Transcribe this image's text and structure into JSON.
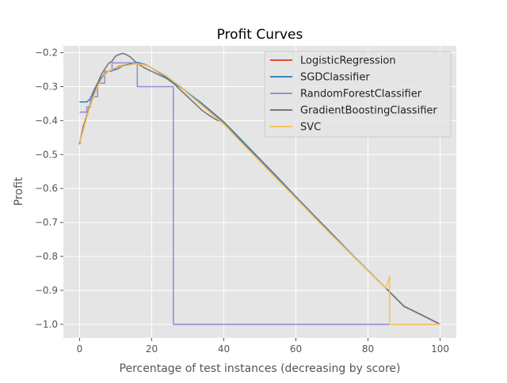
{
  "chart_data": {
    "type": "line",
    "title": "Profit Curves",
    "xlabel": "Percentage of test instances (decreasing by score)",
    "ylabel": "Profit",
    "xlim": [
      -4.5,
      104.5
    ],
    "ylim": [
      -1.04,
      -0.18
    ],
    "xticks": [
      0,
      20,
      40,
      60,
      80,
      100
    ],
    "xtick_labels": [
      "0",
      "20",
      "40",
      "60",
      "80",
      "100"
    ],
    "yticks": [
      -1.0,
      -0.9,
      -0.8,
      -0.7,
      -0.6,
      -0.5,
      -0.4,
      -0.3,
      -0.2
    ],
    "ytick_labels": [
      "−1.0",
      "−0.9",
      "−0.8",
      "−0.7",
      "−0.6",
      "−0.5",
      "−0.4",
      "−0.3",
      "−0.2"
    ],
    "grid": true,
    "legend_position": "top-right",
    "colors": {
      "background": "#E5E5E5",
      "grid": "#FFFFFF",
      "text": "#555555"
    },
    "series": [
      {
        "name": "LogisticRegression",
        "color": "#E24A33",
        "x": [
          0,
          1,
          2,
          3,
          4,
          5,
          6,
          7,
          8,
          9,
          10,
          11,
          12,
          13,
          14,
          15,
          16,
          17,
          18,
          20,
          22,
          24,
          26,
          28,
          30,
          32,
          34,
          36,
          38,
          40,
          44,
          50,
          55,
          60,
          65,
          70,
          75,
          80,
          85,
          90,
          95,
          100
        ],
        "y": [
          -0.465,
          -0.42,
          -0.385,
          -0.355,
          -0.325,
          -0.3,
          -0.28,
          -0.265,
          -0.255,
          -0.25,
          -0.245,
          -0.24,
          -0.238,
          -0.236,
          -0.234,
          -0.232,
          -0.231,
          -0.232,
          -0.234,
          -0.245,
          -0.258,
          -0.27,
          -0.285,
          -0.3,
          -0.318,
          -0.336,
          -0.354,
          -0.372,
          -0.39,
          -0.41,
          -0.452,
          -0.517,
          -0.572,
          -0.627,
          -0.682,
          -0.736,
          -0.79,
          -0.842,
          -0.894,
          -0.947,
          -0.973,
          -1.0
        ]
      },
      {
        "name": "SGDClassifier",
        "color": "#348ABD",
        "x": [
          0,
          2,
          2,
          3,
          4,
          5,
          6,
          7,
          8,
          9,
          10,
          11,
          12,
          13,
          14,
          15,
          16,
          17,
          18,
          20,
          22,
          24,
          26,
          28,
          30,
          32,
          34,
          36,
          38,
          40,
          44,
          50,
          55,
          60,
          65,
          70,
          75,
          80,
          85,
          90,
          95,
          100
        ],
        "y": [
          -0.345,
          -0.345,
          -0.345,
          -0.335,
          -0.31,
          -0.29,
          -0.275,
          -0.262,
          -0.255,
          -0.252,
          -0.25,
          -0.245,
          -0.24,
          -0.236,
          -0.233,
          -0.23,
          -0.229,
          -0.231,
          -0.235,
          -0.245,
          -0.258,
          -0.272,
          -0.288,
          -0.302,
          -0.318,
          -0.334,
          -0.35,
          -0.368,
          -0.386,
          -0.404,
          -0.447,
          -0.513,
          -0.568,
          -0.624,
          -0.679,
          -0.733,
          -0.788,
          -0.841,
          -0.894,
          -0.947,
          -0.973,
          -1.0
        ]
      },
      {
        "name": "RandomForestClassifier",
        "color": "#988ED5",
        "x": [
          0,
          2,
          2,
          3,
          3,
          5,
          5,
          7,
          7,
          9,
          9,
          16,
          16,
          26,
          26,
          86,
          86,
          100
        ],
        "y": [
          -0.375,
          -0.375,
          -0.36,
          -0.36,
          -0.33,
          -0.33,
          -0.29,
          -0.29,
          -0.255,
          -0.255,
          -0.23,
          -0.23,
          -0.3,
          -0.3,
          -1.0,
          -1.0,
          -1.0,
          -1.0
        ]
      },
      {
        "name": "GradientBoostingClassifier",
        "color": "#777777",
        "x": [
          0,
          1,
          2,
          3,
          4,
          5,
          6,
          7,
          8,
          9,
          10,
          11,
          12,
          13,
          14,
          15,
          16,
          17,
          18,
          20,
          22,
          24,
          26,
          28,
          30,
          32,
          34,
          36,
          38,
          40,
          44,
          50,
          55,
          60,
          65,
          70,
          75,
          80,
          85,
          90,
          95,
          100
        ],
        "y": [
          -0.47,
          -0.42,
          -0.385,
          -0.35,
          -0.318,
          -0.29,
          -0.265,
          -0.248,
          -0.232,
          -0.225,
          -0.21,
          -0.205,
          -0.202,
          -0.206,
          -0.212,
          -0.222,
          -0.232,
          -0.238,
          -0.245,
          -0.255,
          -0.265,
          -0.275,
          -0.29,
          -0.31,
          -0.33,
          -0.35,
          -0.37,
          -0.385,
          -0.398,
          -0.405,
          -0.452,
          -0.517,
          -0.572,
          -0.627,
          -0.682,
          -0.736,
          -0.79,
          -0.842,
          -0.894,
          -0.947,
          -0.973,
          -1.0
        ]
      },
      {
        "name": "SVC",
        "color": "#FBC15E",
        "x": [
          0,
          1,
          2,
          3,
          4,
          5,
          6,
          7,
          8,
          9,
          10,
          11,
          12,
          13,
          14,
          15,
          16,
          17,
          18,
          20,
          22,
          24,
          26,
          28,
          30,
          32,
          34,
          36,
          38,
          40,
          44,
          50,
          55,
          60,
          65,
          70,
          75,
          80,
          85,
          86,
          86,
          90,
          95,
          100
        ],
        "y": [
          -0.465,
          -0.43,
          -0.39,
          -0.355,
          -0.325,
          -0.3,
          -0.28,
          -0.265,
          -0.255,
          -0.248,
          -0.245,
          -0.242,
          -0.24,
          -0.238,
          -0.236,
          -0.234,
          -0.233,
          -0.234,
          -0.236,
          -0.245,
          -0.256,
          -0.268,
          -0.284,
          -0.3,
          -0.32,
          -0.338,
          -0.356,
          -0.374,
          -0.392,
          -0.41,
          -0.455,
          -0.52,
          -0.575,
          -0.629,
          -0.684,
          -0.738,
          -0.79,
          -0.842,
          -0.894,
          -0.858,
          -1.0,
          -1.0,
          -1.0,
          -1.0
        ]
      }
    ]
  }
}
